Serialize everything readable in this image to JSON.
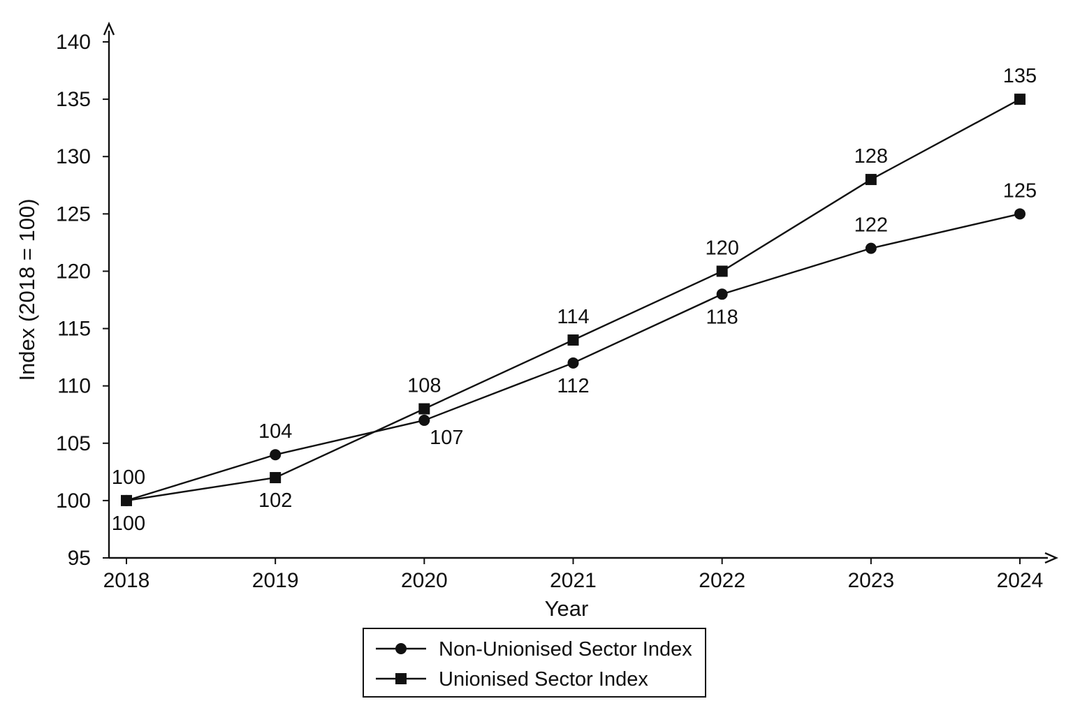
{
  "chart_data": {
    "type": "line",
    "title": "",
    "xlabel": "Year",
    "ylabel": "Index (2018 = 100)",
    "categories": [
      "2018",
      "2019",
      "2020",
      "2021",
      "2022",
      "2023",
      "2024"
    ],
    "ylim": [
      95,
      140
    ],
    "yticks": [
      95,
      100,
      105,
      110,
      115,
      120,
      125,
      130,
      135,
      140
    ],
    "grid": false,
    "legend_position": "bottom-center",
    "series": [
      {
        "name": "Non-Unionised Sector Index",
        "marker": "circle",
        "color": "#111111",
        "values": [
          100,
          104,
          107,
          112,
          118,
          122,
          125
        ],
        "labels": [
          "100",
          "104",
          "107",
          "112",
          "118",
          "122",
          "125"
        ],
        "label_positions": [
          "below",
          "above",
          "below-right",
          "below",
          "below",
          "above",
          "above"
        ]
      },
      {
        "name": "Unionised Sector Index",
        "marker": "square",
        "color": "#111111",
        "values": [
          100,
          102,
          108,
          114,
          120,
          128,
          135
        ],
        "labels": [
          "100",
          "102",
          "108",
          "114",
          "120",
          "128",
          "135"
        ],
        "label_positions": [
          "above",
          "below",
          "above",
          "above",
          "above",
          "above",
          "above"
        ]
      }
    ]
  }
}
